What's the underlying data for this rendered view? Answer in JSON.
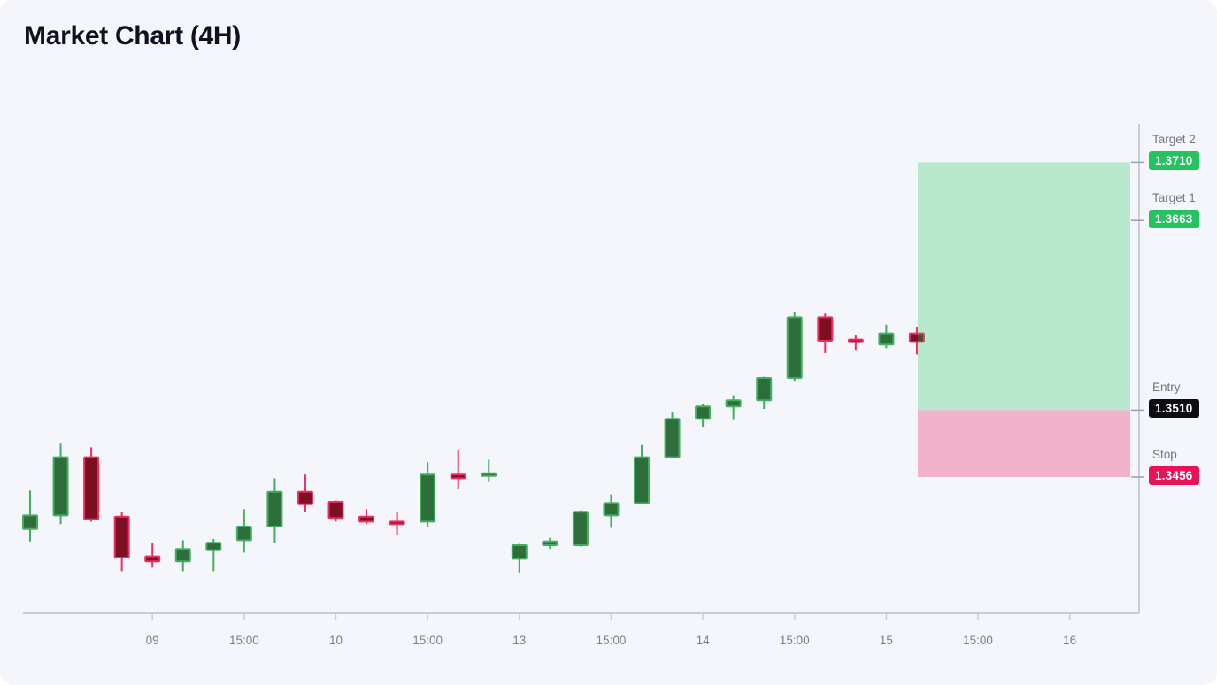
{
  "page": {
    "title": "Market Chart (4H)"
  },
  "colors": {
    "background": "#f4f6fb",
    "title": "#0e1120",
    "axis": "#c9cdd7",
    "price_tick": "#9aa0ab",
    "tick_label": "#7b7f8d",
    "level_label": "#71767f",
    "candle_up_fill": "#2d6e3a",
    "candle_up_stroke": "#43ae60",
    "candle_down_fill": "#7c1022",
    "candle_down_stroke": "#ee2d63",
    "profit_zone": "rgba(34,197,94,0.28)",
    "loss_zone": "rgba(236,35,107,0.32)",
    "target_badge": "#25c35f",
    "entry_badge": "#0d0e12",
    "stop_badge": "#ea1157"
  },
  "chart_data": {
    "type": "candlestick",
    "title": "Market Chart (4H)",
    "timeframe": "4H",
    "ylim": [
      1.3346,
      1.3741
    ],
    "grid": "off",
    "x_axis": {
      "ticks": [
        {
          "slot": 4,
          "label": "09"
        },
        {
          "slot": 7,
          "label": "15:00"
        },
        {
          "slot": 10,
          "label": "10"
        },
        {
          "slot": 13,
          "label": "15:00"
        },
        {
          "slot": 16,
          "label": "13"
        },
        {
          "slot": 19,
          "label": "15:00"
        },
        {
          "slot": 22,
          "label": "14"
        },
        {
          "slot": 25,
          "label": "15:00"
        },
        {
          "slot": 28,
          "label": "15"
        },
        {
          "slot": 31,
          "label": "15:00"
        },
        {
          "slot": 34,
          "label": "16"
        }
      ]
    },
    "candles": [
      {
        "o": 1.3414,
        "h": 1.3445,
        "l": 1.3404,
        "c": 1.3425
      },
      {
        "o": 1.3425,
        "h": 1.3483,
        "l": 1.3418,
        "c": 1.3472
      },
      {
        "o": 1.3472,
        "h": 1.348,
        "l": 1.342,
        "c": 1.3422
      },
      {
        "o": 1.3424,
        "h": 1.3428,
        "l": 1.338,
        "c": 1.3391
      },
      {
        "o": 1.3392,
        "h": 1.3403,
        "l": 1.3383,
        "c": 1.3388
      },
      {
        "o": 1.3388,
        "h": 1.3405,
        "l": 1.338,
        "c": 1.3398
      },
      {
        "o": 1.3397,
        "h": 1.3406,
        "l": 1.338,
        "c": 1.3403
      },
      {
        "o": 1.3405,
        "h": 1.343,
        "l": 1.3395,
        "c": 1.3416
      },
      {
        "o": 1.3416,
        "h": 1.3455,
        "l": 1.3403,
        "c": 1.3444
      },
      {
        "o": 1.3444,
        "h": 1.3458,
        "l": 1.3428,
        "c": 1.3434
      },
      {
        "o": 1.3436,
        "h": 1.3437,
        "l": 1.342,
        "c": 1.3423
      },
      {
        "o": 1.3424,
        "h": 1.343,
        "l": 1.3418,
        "c": 1.342
      },
      {
        "o": 1.342,
        "h": 1.3428,
        "l": 1.3409,
        "c": 1.3419
      },
      {
        "o": 1.342,
        "h": 1.3468,
        "l": 1.3416,
        "c": 1.3458
      },
      {
        "o": 1.3458,
        "h": 1.3478,
        "l": 1.3446,
        "c": 1.3455
      },
      {
        "o": 1.3457,
        "h": 1.347,
        "l": 1.3452,
        "c": 1.3459
      },
      {
        "o": 1.339,
        "h": 1.3402,
        "l": 1.3379,
        "c": 1.3401
      },
      {
        "o": 1.3401,
        "h": 1.3407,
        "l": 1.3398,
        "c": 1.3404
      },
      {
        "o": 1.3401,
        "h": 1.3429,
        "l": 1.34,
        "c": 1.3428
      },
      {
        "o": 1.3425,
        "h": 1.3442,
        "l": 1.3415,
        "c": 1.3435
      },
      {
        "o": 1.3435,
        "h": 1.3482,
        "l": 1.3434,
        "c": 1.3472
      },
      {
        "o": 1.3472,
        "h": 1.3508,
        "l": 1.3471,
        "c": 1.3503
      },
      {
        "o": 1.3503,
        "h": 1.3515,
        "l": 1.3496,
        "c": 1.3513
      },
      {
        "o": 1.3513,
        "h": 1.3522,
        "l": 1.3502,
        "c": 1.3518
      },
      {
        "o": 1.3518,
        "h": 1.3537,
        "l": 1.3511,
        "c": 1.3536
      },
      {
        "o": 1.3536,
        "h": 1.3589,
        "l": 1.3533,
        "c": 1.3585
      },
      {
        "o": 1.3585,
        "h": 1.3588,
        "l": 1.3556,
        "c": 1.3566
      },
      {
        "o": 1.3567,
        "h": 1.3571,
        "l": 1.3558,
        "c": 1.3565
      },
      {
        "o": 1.3563,
        "h": 1.3579,
        "l": 1.356,
        "c": 1.3572
      },
      {
        "o": 1.3572,
        "h": 1.3577,
        "l": 1.3555,
        "c": 1.3565
      }
    ],
    "levels": [
      {
        "name": "target2",
        "label": "Target 2",
        "value": "1.3710",
        "price": 1.371,
        "badge_color": "#25c35f"
      },
      {
        "name": "target1",
        "label": "Target 1",
        "value": "1.3663",
        "price": 1.3663,
        "badge_color": "#25c35f"
      },
      {
        "name": "entry",
        "label": "Entry",
        "value": "1.3510",
        "price": 1.351,
        "badge_color": "#0d0e12"
      },
      {
        "name": "stop",
        "label": "Stop",
        "value": "1.3456",
        "price": 1.3456,
        "badge_color": "#ea1157"
      }
    ],
    "zones": [
      {
        "name": "profit-zone",
        "from_price": 1.371,
        "to_price": 1.351,
        "color": "rgba(34,197,94,0.28)"
      },
      {
        "name": "loss-zone",
        "from_price": 1.351,
        "to_price": 1.3456,
        "color": "rgba(236,35,107,0.32)"
      }
    ]
  }
}
